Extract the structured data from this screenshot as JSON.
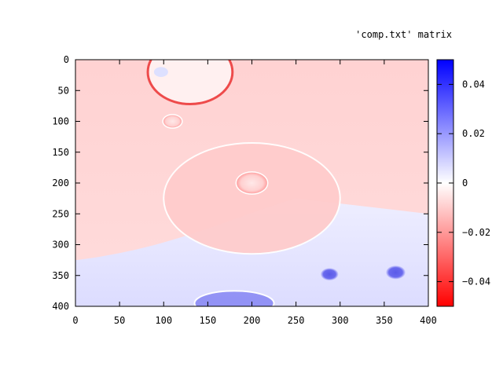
{
  "chart_data": {
    "type": "heatmap",
    "title": "'comp.txt' matrix",
    "xlabel": "",
    "ylabel": "",
    "xlim": [
      0,
      400
    ],
    "ylim": [
      0,
      400
    ],
    "y_inverted": true,
    "x_ticks": [
      "0",
      "50",
      "100",
      "150",
      "200",
      "250",
      "300",
      "350",
      "400"
    ],
    "y_ticks": [
      "0",
      "50",
      "100",
      "150",
      "200",
      "250",
      "300",
      "350",
      "400"
    ],
    "colorbar": {
      "range": [
        -0.05,
        0.05
      ],
      "ticks": [
        "0.04",
        "0.02",
        "0",
        "−0.02",
        "−0.04"
      ],
      "tick_values": [
        0.04,
        0.02,
        0,
        -0.02,
        -0.04
      ],
      "colors": {
        "low": "#ff0000",
        "mid": "#ffffff",
        "high": "#0000ff"
      }
    },
    "features": [
      {
        "kind": "background_top",
        "value": -0.012
      },
      {
        "kind": "background_bottom",
        "value": 0.012,
        "boundary_y": 320
      },
      {
        "kind": "ring",
        "cx": 130,
        "cy": 20,
        "rx": 48,
        "ry": 52,
        "inside_value": 0.0,
        "edge_value": -0.03
      },
      {
        "kind": "spot",
        "cx": 97,
        "cy": 20,
        "r": 8,
        "value": 0.012
      },
      {
        "kind": "spot",
        "cx": 110,
        "cy": 100,
        "r": 11,
        "value": -0.02
      },
      {
        "kind": "ring",
        "cx": 200,
        "cy": 225,
        "rx": 100,
        "ry": 90,
        "inside_value": -0.018,
        "edge_value": 0.005
      },
      {
        "kind": "spot",
        "cx": 200,
        "cy": 200,
        "r": 18,
        "value": -0.01
      },
      {
        "kind": "spot",
        "cx": 288,
        "cy": 348,
        "r": 10,
        "value": 0.035
      },
      {
        "kind": "spot",
        "cx": 363,
        "cy": 345,
        "r": 11,
        "value": 0.035
      },
      {
        "kind": "ring",
        "cx": 180,
        "cy": 395,
        "rx": 45,
        "ry": 20,
        "inside_value": 0.025,
        "edge_value": 0.0
      }
    ]
  }
}
